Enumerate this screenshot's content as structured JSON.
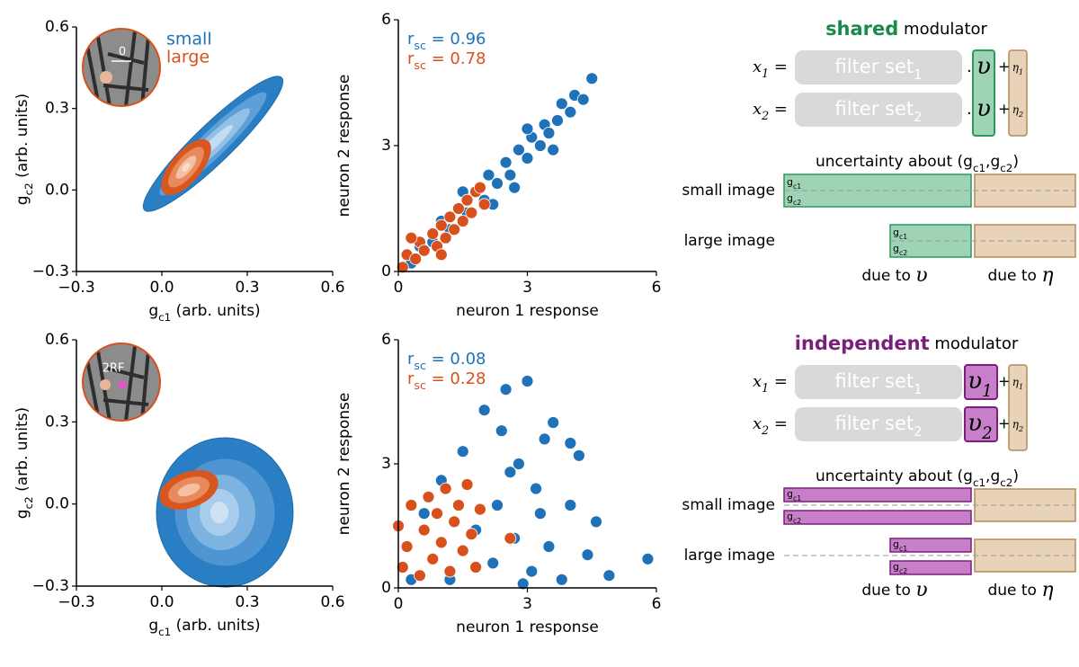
{
  "chart_data": [
    {
      "type": "contour",
      "xlim": [
        -0.3,
        0.6
      ],
      "ylim": [
        -0.3,
        0.6
      ],
      "xticks": [
        {
          "value": -0.3,
          "label": "−0.3"
        },
        {
          "value": 0,
          "label": "0.0"
        },
        0.3,
        0.6
      ],
      "yticks": [
        {
          "value": -0.3,
          "label": "−0.3"
        },
        {
          "value": 0,
          "label": "0.0"
        },
        0.3,
        0.6
      ],
      "xlabel": [
        "g",
        "c1",
        " (arb. units)"
      ],
      "ylabel": [
        "g",
        "c2",
        " (arb. units)"
      ],
      "inset_label": "0",
      "series": [
        {
          "name": "small",
          "color": "#1f72b8"
        },
        {
          "name": "large",
          "color": "#d8501c"
        }
      ]
    },
    {
      "type": "scatter",
      "xlim": [
        0,
        6
      ],
      "ylim": [
        0,
        6
      ],
      "xticks": [
        0,
        3,
        6
      ],
      "yticks": [
        0,
        3,
        6
      ],
      "xlabel": [
        "neuron 1 response"
      ],
      "ylabel": [
        "neuron 2 response"
      ],
      "series": [
        {
          "color": "#1f72b8",
          "label": [
            "r",
            "sc",
            " = 0.96"
          ],
          "x": [
            0.5,
            0.8,
            1.0,
            1.2,
            1.4,
            1.6,
            1.8,
            2.0,
            2.1,
            2.3,
            2.5,
            2.6,
            2.8,
            3.0,
            3.1,
            3.3,
            3.4,
            3.5,
            3.7,
            3.8,
            4.0,
            4.1,
            4.3,
            4.5,
            2.2,
            1.5,
            3.0,
            2.7,
            0.3,
            3.6
          ],
          "values": [
            0.6,
            0.7,
            1.2,
            1.0,
            1.5,
            1.4,
            1.9,
            1.7,
            2.3,
            2.1,
            2.6,
            2.3,
            2.9,
            2.7,
            3.2,
            3.0,
            3.5,
            3.3,
            3.6,
            4.0,
            3.8,
            4.2,
            4.1,
            4.6,
            1.6,
            1.9,
            3.4,
            2.0,
            0.2,
            2.9
          ]
        },
        {
          "color": "#d8501c",
          "label": [
            "r",
            "sc",
            " = 0.78"
          ],
          "x": [
            0.1,
            0.2,
            0.4,
            0.5,
            0.6,
            0.8,
            0.9,
            1.0,
            1.1,
            1.2,
            1.3,
            1.4,
            1.5,
            1.6,
            1.7,
            1.8,
            1.9,
            2.0,
            0.3,
            1.0
          ],
          "values": [
            0.1,
            0.4,
            0.3,
            0.7,
            0.5,
            0.9,
            0.6,
            1.1,
            0.8,
            1.3,
            1.0,
            1.5,
            1.2,
            1.7,
            1.4,
            1.9,
            2.0,
            1.6,
            0.8,
            0.4
          ]
        }
      ]
    },
    {
      "type": "contour",
      "xlim": [
        -0.3,
        0.6
      ],
      "ylim": [
        -0.3,
        0.6
      ],
      "xticks": [
        {
          "value": -0.3,
          "label": "−0.3"
        },
        {
          "value": 0,
          "label": "0.0"
        },
        0.3,
        0.6
      ],
      "yticks": [
        {
          "value": -0.3,
          "label": "−0.3"
        },
        {
          "value": 0,
          "label": "0.0"
        },
        0.3,
        0.6
      ],
      "xlabel": [
        "g",
        "c1",
        " (arb. units)"
      ],
      "ylabel": [
        "g",
        "c2",
        " (arb. units)"
      ],
      "inset_label": "2RF"
    },
    {
      "type": "scatter",
      "xlim": [
        0,
        6
      ],
      "ylim": [
        0,
        6
      ],
      "xticks": [
        0,
        3,
        6
      ],
      "yticks": [
        0,
        3,
        6
      ],
      "xlabel": [
        "neuron 1 response"
      ],
      "ylabel": [
        "neuron 2 response"
      ],
      "series": [
        {
          "color": "#1f72b8",
          "label": [
            "r",
            "sc",
            " = 0.08"
          ],
          "x": [
            0.3,
            0.6,
            1.0,
            1.5,
            2.0,
            2.3,
            2.5,
            2.7,
            2.8,
            3.0,
            3.1,
            3.2,
            3.4,
            3.5,
            3.6,
            3.8,
            4.0,
            4.2,
            4.4,
            4.6,
            4.9,
            5.8,
            2.2,
            1.8,
            3.3,
            2.6,
            4.0,
            1.2,
            2.9,
            2.4
          ],
          "values": [
            0.2,
            1.8,
            2.6,
            3.3,
            4.3,
            2.0,
            4.8,
            1.2,
            3.0,
            5.0,
            0.4,
            2.4,
            3.6,
            1.0,
            4.0,
            0.2,
            2.0,
            3.2,
            0.8,
            1.6,
            0.3,
            0.7,
            0.6,
            1.4,
            1.8,
            2.8,
            3.5,
            0.2,
            0.1,
            3.8
          ]
        },
        {
          "color": "#d8501c",
          "label": [
            "r",
            "sc",
            " = 0.28"
          ],
          "x": [
            0.0,
            0.1,
            0.2,
            0.3,
            0.5,
            0.6,
            0.7,
            0.8,
            0.9,
            1.0,
            1.1,
            1.2,
            1.3,
            1.4,
            1.5,
            1.6,
            1.7,
            1.8,
            1.9,
            2.6
          ],
          "values": [
            1.5,
            0.5,
            1.0,
            2.0,
            0.3,
            1.4,
            2.2,
            0.7,
            1.8,
            1.1,
            2.4,
            0.4,
            1.6,
            2.0,
            0.9,
            2.5,
            1.3,
            0.5,
            1.9,
            1.2
          ]
        }
      ]
    }
  ],
  "diagrams": [
    {
      "title": [
        "shared",
        " modulator"
      ],
      "color": "#1a8a4a",
      "equations": [
        {
          "lhs": [
            "x",
            "1",
            " ="
          ],
          "filter": [
            "filter set",
            "1"
          ],
          "dot": ".",
          "mod": [
            "υ"
          ],
          "plus": "+",
          "noise": [
            "η",
            "1"
          ]
        },
        {
          "lhs": [
            "x",
            "2",
            " ="
          ],
          "filter": [
            "filter set",
            "2"
          ],
          "dot": ".",
          "mod": [
            "υ"
          ],
          "plus": "+",
          "noise": [
            "η",
            "2"
          ]
        }
      ],
      "uncertainty": [
        "uncertainty about (g",
        "c1",
        ",g",
        "c2",
        ")"
      ],
      "rows": [
        {
          "label": "small image",
          "bar_labels": [
            [
              "g",
              "c1"
            ],
            [
              "g",
              "c2"
            ]
          ]
        },
        {
          "label": "large image",
          "bar_labels": [
            [
              "g",
              "c1"
            ],
            [
              "g",
              "c2"
            ]
          ]
        }
      ],
      "due": [
        {
          "text": "due to ",
          "symbol": "υ"
        },
        {
          "text": "due to ",
          "symbol": "η"
        }
      ]
    },
    {
      "title": [
        "independent",
        " modulator"
      ],
      "color": "#7a1f7a",
      "equations": [
        {
          "lhs": [
            "x",
            "1",
            " ="
          ],
          "filter": [
            "filter set",
            "1"
          ],
          "dot": ".",
          "mod": [
            "υ",
            "1"
          ],
          "plus": "+",
          "noise": [
            "η",
            "1"
          ]
        },
        {
          "lhs": [
            "x",
            "2",
            " ="
          ],
          "filter": [
            "filter set",
            "2"
          ],
          "dot": ".",
          "mod": [
            "υ",
            "2"
          ],
          "plus": "+",
          "noise": [
            "η",
            "2"
          ]
        }
      ],
      "uncertainty": [
        "uncertainty about (g",
        "c1",
        ",g",
        "c2",
        ")"
      ],
      "rows": [
        {
          "label": "small image",
          "bar_labels": [
            [
              "g",
              "c1"
            ],
            [
              "g",
              "c2"
            ]
          ]
        },
        {
          "label": "large image",
          "bar_labels": [
            [
              "g",
              "c1"
            ],
            [
              "g",
              "c2"
            ]
          ]
        }
      ],
      "due": [
        {
          "text": "due to ",
          "symbol": "υ"
        },
        {
          "text": "due to ",
          "symbol": "η"
        }
      ]
    }
  ]
}
